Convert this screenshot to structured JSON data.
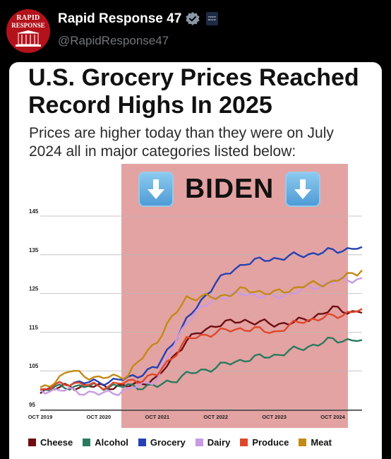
{
  "header": {
    "avatar_line1": "RAPID",
    "avatar_line2": "RESPONSE",
    "name": "Rapid Response 47",
    "handle": "@RapidResponse47",
    "badge_text": "WHITE HOUSE"
  },
  "post": {
    "title": "U.S. Grocery Prices Reached Record Highs In 2025",
    "subtitle": "Prices are higher today than they were on July 2024 all in major categories listed below:",
    "highlight_label": "BIDEN"
  },
  "colors": {
    "brand_red": "#b3121b",
    "band": "#e3a3a2",
    "cheese": "#6e0d12",
    "alcohol": "#2a7a5e",
    "grocery": "#2541b2",
    "dairy": "#c99ae3",
    "produce": "#e0472a",
    "meat": "#c28a16"
  },
  "chart_data": {
    "type": "line",
    "x_ticks": [
      "OCT 2019",
      "OCT 2020",
      "OCT 2021",
      "OCT 2022",
      "OCT 2023",
      "OCT 2024"
    ],
    "y_ticks": [
      95,
      105,
      115,
      125,
      135,
      145
    ],
    "ylim": [
      95,
      145
    ],
    "xlim": [
      "2019-10",
      "2025-04"
    ],
    "highlight_period": [
      "2021-01",
      "2025-01"
    ],
    "grid": true,
    "legend_position": "bottom",
    "series": [
      {
        "name": "Cheese",
        "color": "#6e0d12",
        "x": [
          "2019-10",
          "2020-04",
          "2020-10",
          "2021-04",
          "2021-10",
          "2022-04",
          "2022-10",
          "2023-04",
          "2023-10",
          "2024-04",
          "2024-10",
          "2025-04"
        ],
        "values": [
          100,
          101,
          101,
          101,
          103,
          113,
          117,
          118,
          117,
          118,
          121,
          120
        ]
      },
      {
        "name": "Alcohol",
        "color": "#2a7a5e",
        "x": [
          "2019-10",
          "2020-04",
          "2020-10",
          "2021-04",
          "2021-10",
          "2022-04",
          "2022-10",
          "2023-04",
          "2023-10",
          "2024-04",
          "2024-10",
          "2025-04"
        ],
        "values": [
          100,
          101,
          101,
          101,
          101,
          104,
          106,
          108,
          109,
          111,
          113,
          113
        ]
      },
      {
        "name": "Grocery",
        "color": "#2541b2",
        "x": [
          "2019-10",
          "2020-04",
          "2020-10",
          "2021-04",
          "2021-10",
          "2022-04",
          "2022-10",
          "2023-04",
          "2023-10",
          "2024-04",
          "2024-10",
          "2025-04"
        ],
        "values": [
          100,
          102,
          102,
          103,
          106,
          118,
          128,
          133,
          134,
          135,
          136,
          137
        ]
      },
      {
        "name": "Dairy",
        "color": "#c99ae3",
        "x": [
          "2019-10",
          "2020-04",
          "2020-10",
          "2021-04",
          "2021-10",
          "2022-04",
          "2022-10",
          "2023-04",
          "2023-10",
          "2024-04",
          "2024-10",
          "2025-04"
        ],
        "values": [
          100,
          100,
          99,
          100,
          103,
          118,
          124,
          125,
          124,
          126,
          128,
          129
        ]
      },
      {
        "name": "Produce",
        "color": "#e0472a",
        "x": [
          "2019-10",
          "2020-04",
          "2020-10",
          "2021-04",
          "2021-10",
          "2022-04",
          "2022-10",
          "2023-04",
          "2023-10",
          "2024-04",
          "2024-10",
          "2025-04"
        ],
        "values": [
          100,
          102,
          101,
          102,
          104,
          113,
          115,
          116,
          115,
          118,
          119,
          121
        ]
      },
      {
        "name": "Meat",
        "color": "#c28a16",
        "x": [
          "2019-10",
          "2020-04",
          "2020-10",
          "2021-04",
          "2021-10",
          "2022-04",
          "2022-10",
          "2023-04",
          "2023-10",
          "2024-04",
          "2024-10",
          "2025-04"
        ],
        "values": [
          100,
          105,
          103,
          104,
          113,
          124,
          124,
          126,
          125,
          127,
          128,
          131
        ]
      }
    ]
  }
}
